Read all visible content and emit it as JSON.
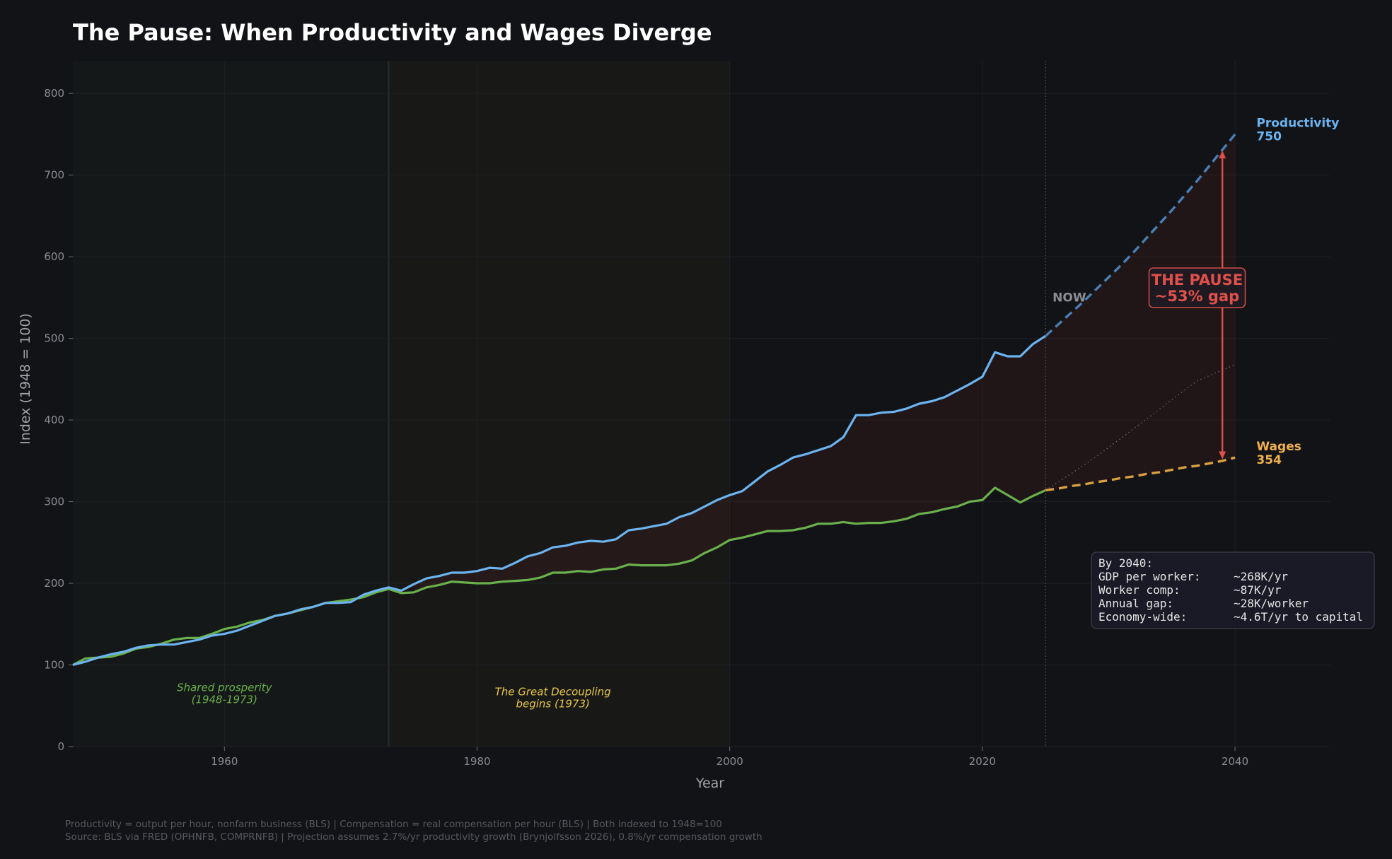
{
  "title": "The Pause: When Productivity and Wages Diverge",
  "chart_data": {
    "type": "line",
    "title": "The Pause: When Productivity and Wages Diverge",
    "xlabel": "Year",
    "ylabel": "Index (1948 = 100)",
    "xlim": [
      1948,
      2047.5
    ],
    "ylim": [
      0,
      840
    ],
    "x_ticks": [
      1960,
      1980,
      2000,
      2020,
      2040
    ],
    "y_ticks": [
      0,
      100,
      200,
      300,
      400,
      500,
      600,
      700,
      800
    ],
    "grid": true,
    "colors": {
      "productivity": "#6cb4f0",
      "wages": "#6ab04c",
      "projection_productivity": "#4a7fb5",
      "projection_wages": "#d9a042",
      "gap": "#e0504a",
      "wages_label": "#f0b050"
    },
    "series": [
      {
        "name": "Productivity",
        "x": [
          1948,
          1949,
          1950,
          1951,
          1952,
          1953,
          1954,
          1955,
          1956,
          1957,
          1958,
          1959,
          1960,
          1961,
          1962,
          1963,
          1964,
          1965,
          1966,
          1967,
          1968,
          1969,
          1970,
          1971,
          1972,
          1973,
          1974,
          1975,
          1976,
          1977,
          1978,
          1979,
          1980,
          1981,
          1982,
          1983,
          1984,
          1985,
          1986,
          1987,
          1988,
          1989,
          1990,
          1991,
          1992,
          1993,
          1994,
          1995,
          1996,
          1997,
          1998,
          1999,
          2000,
          2001,
          2002,
          2003,
          2004,
          2005,
          2006,
          2007,
          2008,
          2009,
          2010,
          2011,
          2012,
          2013,
          2014,
          2015,
          2016,
          2017,
          2018,
          2019,
          2020,
          2021,
          2022,
          2023,
          2024,
          2025
        ],
        "values": [
          100,
          104,
          109,
          113,
          116,
          121,
          124,
          125,
          125,
          128,
          131,
          136,
          138,
          142,
          148,
          154,
          160,
          163,
          168,
          171,
          176,
          176,
          177,
          186,
          191,
          195,
          191,
          199,
          206,
          209,
          213,
          213,
          215,
          219,
          218,
          225,
          233,
          237,
          244,
          246,
          250,
          252,
          251,
          254,
          265,
          267,
          270,
          273,
          281,
          286,
          294,
          302,
          308,
          313,
          325,
          337,
          345,
          354,
          358,
          363,
          368,
          379,
          406,
          406,
          409,
          410,
          414,
          420,
          423,
          428,
          436,
          444,
          453,
          483,
          478,
          478,
          493,
          503
        ]
      },
      {
        "name": "Wages",
        "x": [
          1948,
          1949,
          1950,
          1951,
          1952,
          1953,
          1954,
          1955,
          1956,
          1957,
          1958,
          1959,
          1960,
          1961,
          1962,
          1963,
          1964,
          1965,
          1966,
          1967,
          1968,
          1969,
          1970,
          1971,
          1972,
          1973,
          1974,
          1975,
          1976,
          1977,
          1978,
          1979,
          1980,
          1981,
          1982,
          1983,
          1984,
          1985,
          1986,
          1987,
          1988,
          1989,
          1990,
          1991,
          1992,
          1993,
          1994,
          1995,
          1996,
          1997,
          1998,
          1999,
          2000,
          2001,
          2002,
          2003,
          2004,
          2005,
          2006,
          2007,
          2008,
          2009,
          2010,
          2011,
          2012,
          2013,
          2014,
          2015,
          2016,
          2017,
          2018,
          2019,
          2020,
          2021,
          2022,
          2023,
          2024,
          2025
        ],
        "values": [
          100,
          108,
          109,
          110,
          114,
          120,
          122,
          126,
          131,
          133,
          133,
          138,
          144,
          147,
          152,
          155,
          160,
          163,
          167,
          171,
          176,
          178,
          180,
          183,
          189,
          193,
          188,
          189,
          195,
          198,
          202,
          201,
          200,
          200,
          202,
          203,
          204,
          207,
          213,
          213,
          215,
          214,
          217,
          218,
          223,
          222,
          222,
          222,
          224,
          228,
          237,
          244,
          253,
          256,
          260,
          264,
          264,
          265,
          268,
          273,
          273,
          275,
          273,
          274,
          274,
          276,
          279,
          285,
          287,
          291,
          294,
          300,
          302,
          317,
          308,
          299,
          307,
          314
        ]
      },
      {
        "name": "Productivity projection",
        "x": [
          2025,
          2026,
          2027,
          2028,
          2029,
          2030,
          2031,
          2032,
          2033,
          2034,
          2035,
          2036,
          2037,
          2038,
          2039,
          2040
        ],
        "values": [
          503,
          517,
          531,
          545,
          560,
          575,
          590,
          606,
          623,
          640,
          657,
          675,
          693,
          712,
          731,
          750
        ]
      },
      {
        "name": "Wages projection",
        "x": [
          2025,
          2026,
          2027,
          2028,
          2029,
          2030,
          2031,
          2032,
          2033,
          2034,
          2035,
          2036,
          2037,
          2038,
          2039,
          2040
        ],
        "values": [
          314,
          316,
          319,
          321,
          324,
          326,
          329,
          331,
          334,
          336,
          339,
          342,
          344,
          347,
          350,
          354
        ]
      },
      {
        "name": "Reference",
        "x": [
          2025,
          2027,
          2029,
          2031,
          2033,
          2035,
          2037,
          2040
        ],
        "values": [
          314,
          334,
          355,
          378,
          401,
          425,
          448,
          468
        ]
      }
    ],
    "regions": [
      {
        "label": "Shared prosperity\n(1948-1973)",
        "x": [
          1948,
          1973
        ],
        "color": "#6ab04c"
      },
      {
        "label": "The Great Decoupling\nbegins (1973)",
        "x": [
          1973,
          2000
        ],
        "color": "#d8c04a"
      }
    ],
    "now_year": 2025,
    "now_label": "NOW",
    "end_labels": [
      {
        "series": "Productivity",
        "name": "Productivity",
        "value": "750"
      },
      {
        "series": "Wages",
        "name": "Wages",
        "value": "354"
      }
    ],
    "gap_annotation": {
      "year": 2039,
      "from": 352,
      "to": 730,
      "line1": "THE PAUSE",
      "line2": "~53% gap"
    },
    "summary_box": {
      "heading": "By 2040:",
      "rows": [
        {
          "label": "GDP per worker:",
          "value": "~268K/yr"
        },
        {
          "label": "Worker comp:",
          "value": "~87K/yr"
        },
        {
          "label": "Annual gap:",
          "value": "~28K/worker"
        },
        {
          "label": "Economy-wide:",
          "value": "~4.6T/yr to capital"
        }
      ]
    }
  },
  "footnotes": {
    "line1": "Productivity = output per hour, nonfarm business (BLS)  |  Compensation = real compensation per hour (BLS)  |  Both indexed to 1948=100",
    "line2": "Source: BLS via FRED (OPHNFB, COMPRNFB)  |  Projection assumes 2.7%/yr productivity growth (Brynjolfsson 2026), 0.8%/yr compensation growth"
  }
}
